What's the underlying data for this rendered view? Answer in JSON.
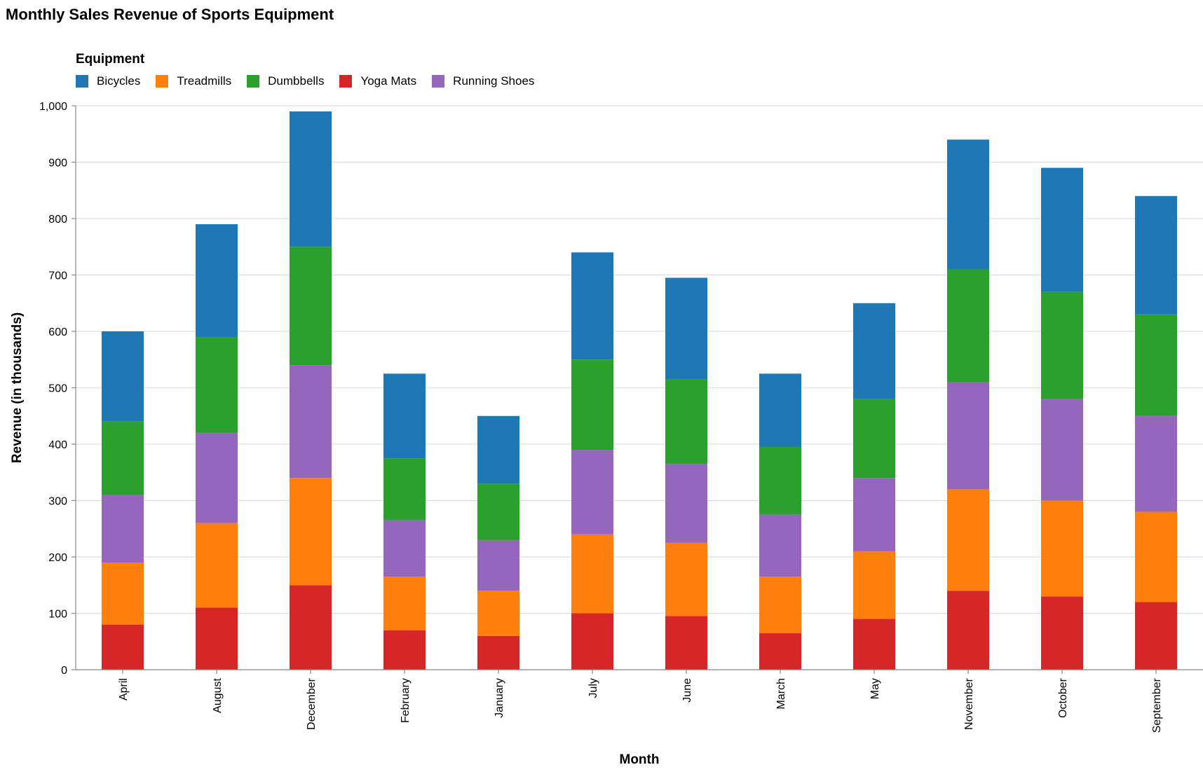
{
  "chart_data": {
    "type": "bar",
    "stacked": true,
    "title": "Monthly Sales Revenue of Sports Equipment",
    "xlabel": "Month",
    "ylabel": "Revenue (in thousands)",
    "ylim": [
      0,
      1000
    ],
    "yticks": [
      0,
      100,
      200,
      300,
      400,
      500,
      600,
      700,
      800,
      900,
      1000
    ],
    "ytick_labels": [
      "0",
      "100",
      "200",
      "300",
      "400",
      "500",
      "600",
      "700",
      "800",
      "900",
      "1,000"
    ],
    "grid": "horizontal",
    "legend_title": "Equipment",
    "legend_position": "top-left",
    "categories": [
      "April",
      "August",
      "December",
      "February",
      "January",
      "July",
      "June",
      "March",
      "May",
      "November",
      "October",
      "September"
    ],
    "legend_order": [
      "Bicycles",
      "Treadmills",
      "Dumbbells",
      "Yoga Mats",
      "Running Shoes"
    ],
    "series": [
      {
        "name": "Yoga Mats",
        "color": "#d62728",
        "values": [
          80,
          110,
          150,
          70,
          60,
          100,
          95,
          65,
          90,
          140,
          130,
          120
        ]
      },
      {
        "name": "Treadmills",
        "color": "#ff7f0e",
        "values": [
          110,
          150,
          190,
          95,
          80,
          140,
          130,
          100,
          120,
          180,
          170,
          160
        ]
      },
      {
        "name": "Running Shoes",
        "color": "#9467bd",
        "values": [
          120,
          160,
          200,
          100,
          90,
          150,
          140,
          110,
          130,
          190,
          180,
          170
        ]
      },
      {
        "name": "Dumbbells",
        "color": "#2ca02c",
        "values": [
          130,
          170,
          210,
          110,
          100,
          160,
          150,
          120,
          140,
          200,
          190,
          180
        ]
      },
      {
        "name": "Bicycles",
        "color": "#1f77b4",
        "values": [
          160,
          200,
          240,
          150,
          120,
          190,
          180,
          130,
          170,
          230,
          220,
          210
        ]
      }
    ]
  }
}
